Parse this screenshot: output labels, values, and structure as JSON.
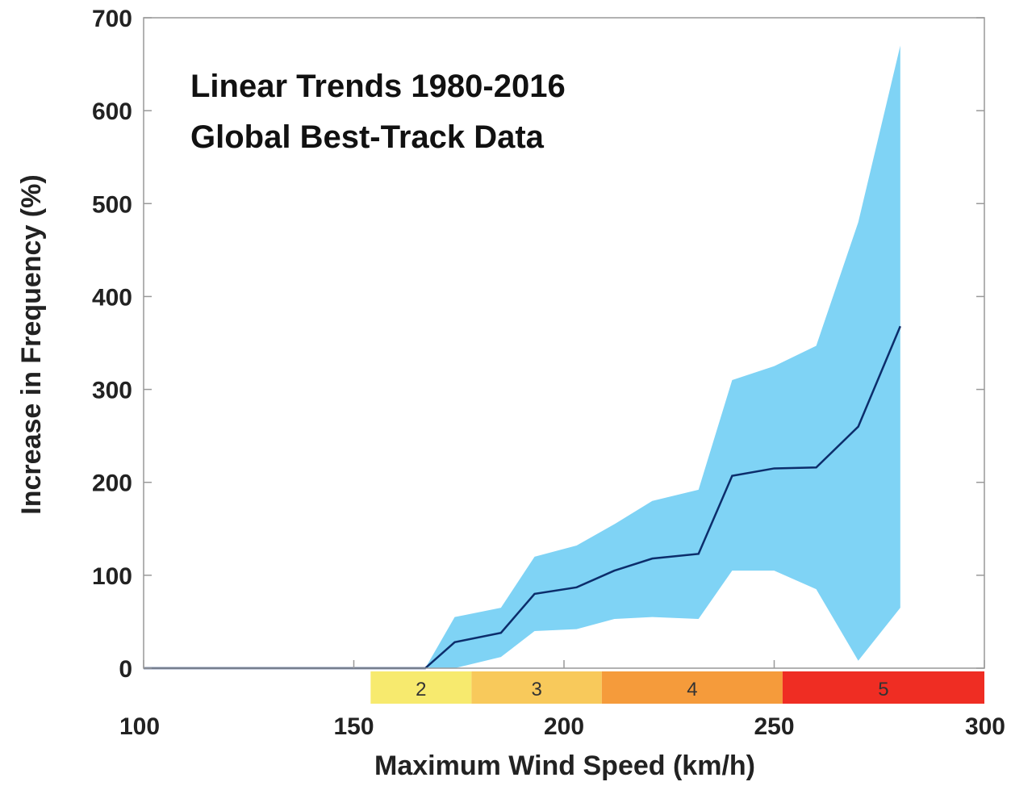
{
  "chart_data": {
    "type": "area",
    "title_lines": [
      "Linear Trends 1980-2016",
      "Global Best-Track Data"
    ],
    "xlabel": "Maximum Wind Speed (km/h)",
    "ylabel": "Increase in Frequency (%)",
    "xlim": [
      100,
      300
    ],
    "ylim": [
      0,
      700
    ],
    "xticks": [
      "100",
      "150",
      "200",
      "250",
      "300"
    ],
    "xtick_values": [
      100,
      150,
      200,
      250,
      300
    ],
    "yticks": [
      "0",
      "100",
      "200",
      "300",
      "400",
      "500",
      "600",
      "700"
    ],
    "ytick_values": [
      0,
      100,
      200,
      300,
      400,
      500,
      600,
      700
    ],
    "grid": false,
    "series": [
      {
        "type": "line",
        "color": "#0c2d6b",
        "x": [
          100,
          167,
          174,
          185,
          193,
          203,
          212,
          221,
          232,
          240,
          250,
          260,
          270,
          280
        ],
        "y": [
          0,
          0,
          28,
          38,
          80,
          87,
          105,
          118,
          123,
          207,
          215,
          216,
          260,
          368
        ]
      }
    ],
    "band": {
      "color": "#7fd3f5",
      "x": [
        167,
        174,
        185,
        193,
        203,
        212,
        221,
        232,
        240,
        250,
        260,
        270,
        280
      ],
      "upper": [
        0,
        55,
        65,
        120,
        132,
        155,
        180,
        192,
        310,
        325,
        347,
        480,
        670
      ],
      "lower": [
        0,
        0,
        12,
        40,
        42,
        53,
        55,
        53,
        105,
        105,
        85,
        8,
        65
      ]
    },
    "categories": [
      {
        "label": "2",
        "from": 154,
        "to": 178,
        "color": "#f7ea6e"
      },
      {
        "label": "3",
        "from": 178,
        "to": 209,
        "color": "#f8c95b"
      },
      {
        "label": "4",
        "from": 209,
        "to": 252,
        "color": "#f59b3b"
      },
      {
        "label": "5",
        "from": 252,
        "to": 300,
        "color": "#ef2d23"
      }
    ]
  }
}
